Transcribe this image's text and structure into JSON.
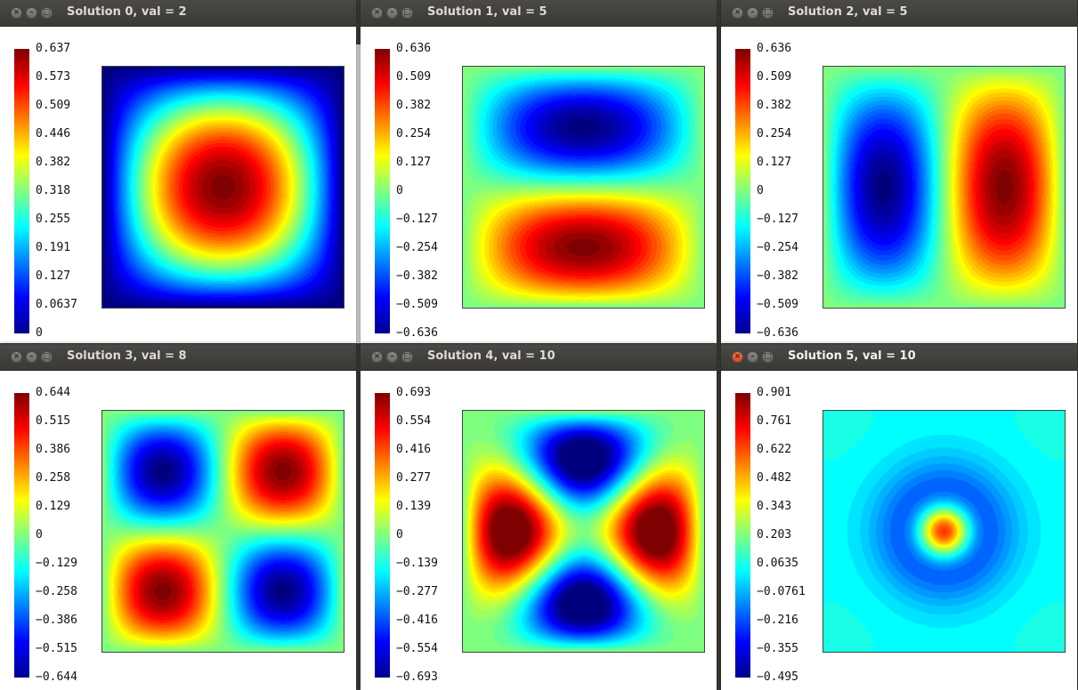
{
  "windows": [
    {
      "title": "Solution 0, val = 2",
      "active": false,
      "ticks": [
        "0.637",
        "0.573",
        "0.509",
        "0.446",
        "0.382",
        "0.318",
        "0.255",
        "0.191",
        "0.127",
        "0.0637",
        "0"
      ],
      "mode": 0
    },
    {
      "title": "Solution 1, val = 5",
      "active": false,
      "ticks": [
        "0.636",
        "0.509",
        "0.382",
        "0.254",
        "0.127",
        "0",
        "−0.127",
        "−0.254",
        "−0.382",
        "−0.509",
        "−0.636"
      ],
      "mode": 1
    },
    {
      "title": "Solution 2, val = 5",
      "active": false,
      "ticks": [
        "0.636",
        "0.509",
        "0.382",
        "0.254",
        "0.127",
        "0",
        "−0.127",
        "−0.254",
        "−0.382",
        "−0.509",
        "−0.636"
      ],
      "mode": 2
    },
    {
      "title": "Solution 3, val = 8",
      "active": false,
      "ticks": [
        "0.644",
        "0.515",
        "0.386",
        "0.258",
        "0.129",
        "0",
        "−0.129",
        "−0.258",
        "−0.386",
        "−0.515",
        "−0.644"
      ],
      "mode": 3
    },
    {
      "title": "Solution 4, val = 10",
      "active": false,
      "ticks": [
        "0.693",
        "0.554",
        "0.416",
        "0.277",
        "0.139",
        "0",
        "−0.139",
        "−0.277",
        "−0.416",
        "−0.554",
        "−0.693"
      ],
      "mode": 4
    },
    {
      "title": "Solution 5, val = 10",
      "active": true,
      "ticks": [
        "0.901",
        "0.761",
        "0.622",
        "0.482",
        "0.343",
        "0.203",
        "0.0635",
        "−0.0761",
        "−0.216",
        "−0.355",
        "−0.495"
      ],
      "mode": 5
    }
  ],
  "icons": {
    "close": "close-icon",
    "minimize": "minimize-icon",
    "maximize": "maximize-icon"
  },
  "colors": {
    "titlebar": "#3c3b37",
    "close_active": "#e9541e",
    "colormap": "jet"
  }
}
